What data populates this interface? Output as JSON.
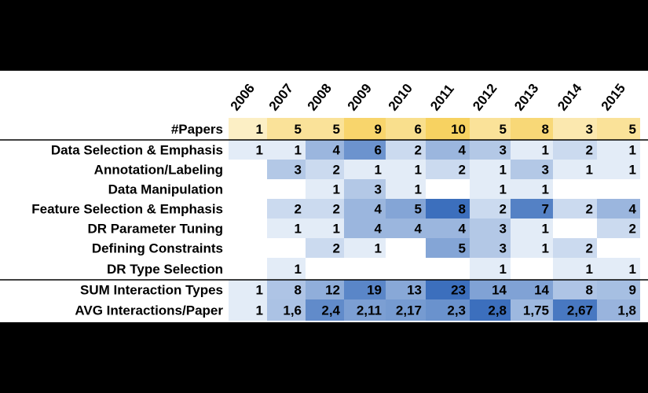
{
  "chart_data": {
    "type": "heatmap",
    "columns": [
      "2006",
      "2007",
      "2008",
      "2009",
      "2010",
      "2011",
      "2012",
      "2013",
      "2014",
      "2015"
    ],
    "papers_row": {
      "label": "#Papers",
      "values": [
        "1",
        "5",
        "5",
        "9",
        "6",
        "10",
        "5",
        "8",
        "3",
        "5"
      ]
    },
    "interaction_rows": [
      {
        "label": "Data Selection & Emphasis",
        "values": [
          "1",
          "1",
          "4",
          "6",
          "2",
          "4",
          "3",
          "1",
          "2",
          "1"
        ]
      },
      {
        "label": "Annotation/Labeling",
        "values": [
          "",
          "3",
          "2",
          "1",
          "1",
          "2",
          "1",
          "3",
          "1",
          "1"
        ]
      },
      {
        "label": "Data Manipulation",
        "values": [
          "",
          "",
          "1",
          "3",
          "1",
          "",
          "1",
          "1",
          "",
          ""
        ]
      },
      {
        "label": "Feature Selection & Emphasis",
        "values": [
          "",
          "2",
          "2",
          "4",
          "5",
          "8",
          "2",
          "7",
          "2",
          "4"
        ]
      },
      {
        "label": "DR Parameter Tuning",
        "values": [
          "",
          "1",
          "1",
          "4",
          "4",
          "4",
          "3",
          "1",
          "",
          "2"
        ]
      },
      {
        "label": "Defining Constraints",
        "values": [
          "",
          "",
          "2",
          "1",
          "",
          "5",
          "3",
          "1",
          "2",
          ""
        ]
      },
      {
        "label": "DR Type Selection",
        "values": [
          "",
          "1",
          "",
          "",
          "",
          "",
          "1",
          "",
          "1",
          "1"
        ]
      }
    ],
    "summary_rows": [
      {
        "label": "SUM Interaction Types",
        "values": [
          "1",
          "8",
          "12",
          "19",
          "13",
          "23",
          "14",
          "14",
          "8",
          "9"
        ]
      },
      {
        "label": "AVG Interactions/Paper",
        "values": [
          "1",
          "1,6",
          "2,4",
          "2,11",
          "2,17",
          "2,3",
          "2,8",
          "1,75",
          "2,67",
          "1,8"
        ]
      }
    ],
    "colors": {
      "papers_light": "#fdf2d0",
      "papers_dark": "#f7d261",
      "blue_light": "#e3ecf7",
      "blue_dark": "#3c6fbd",
      "rule": "#000000"
    }
  }
}
